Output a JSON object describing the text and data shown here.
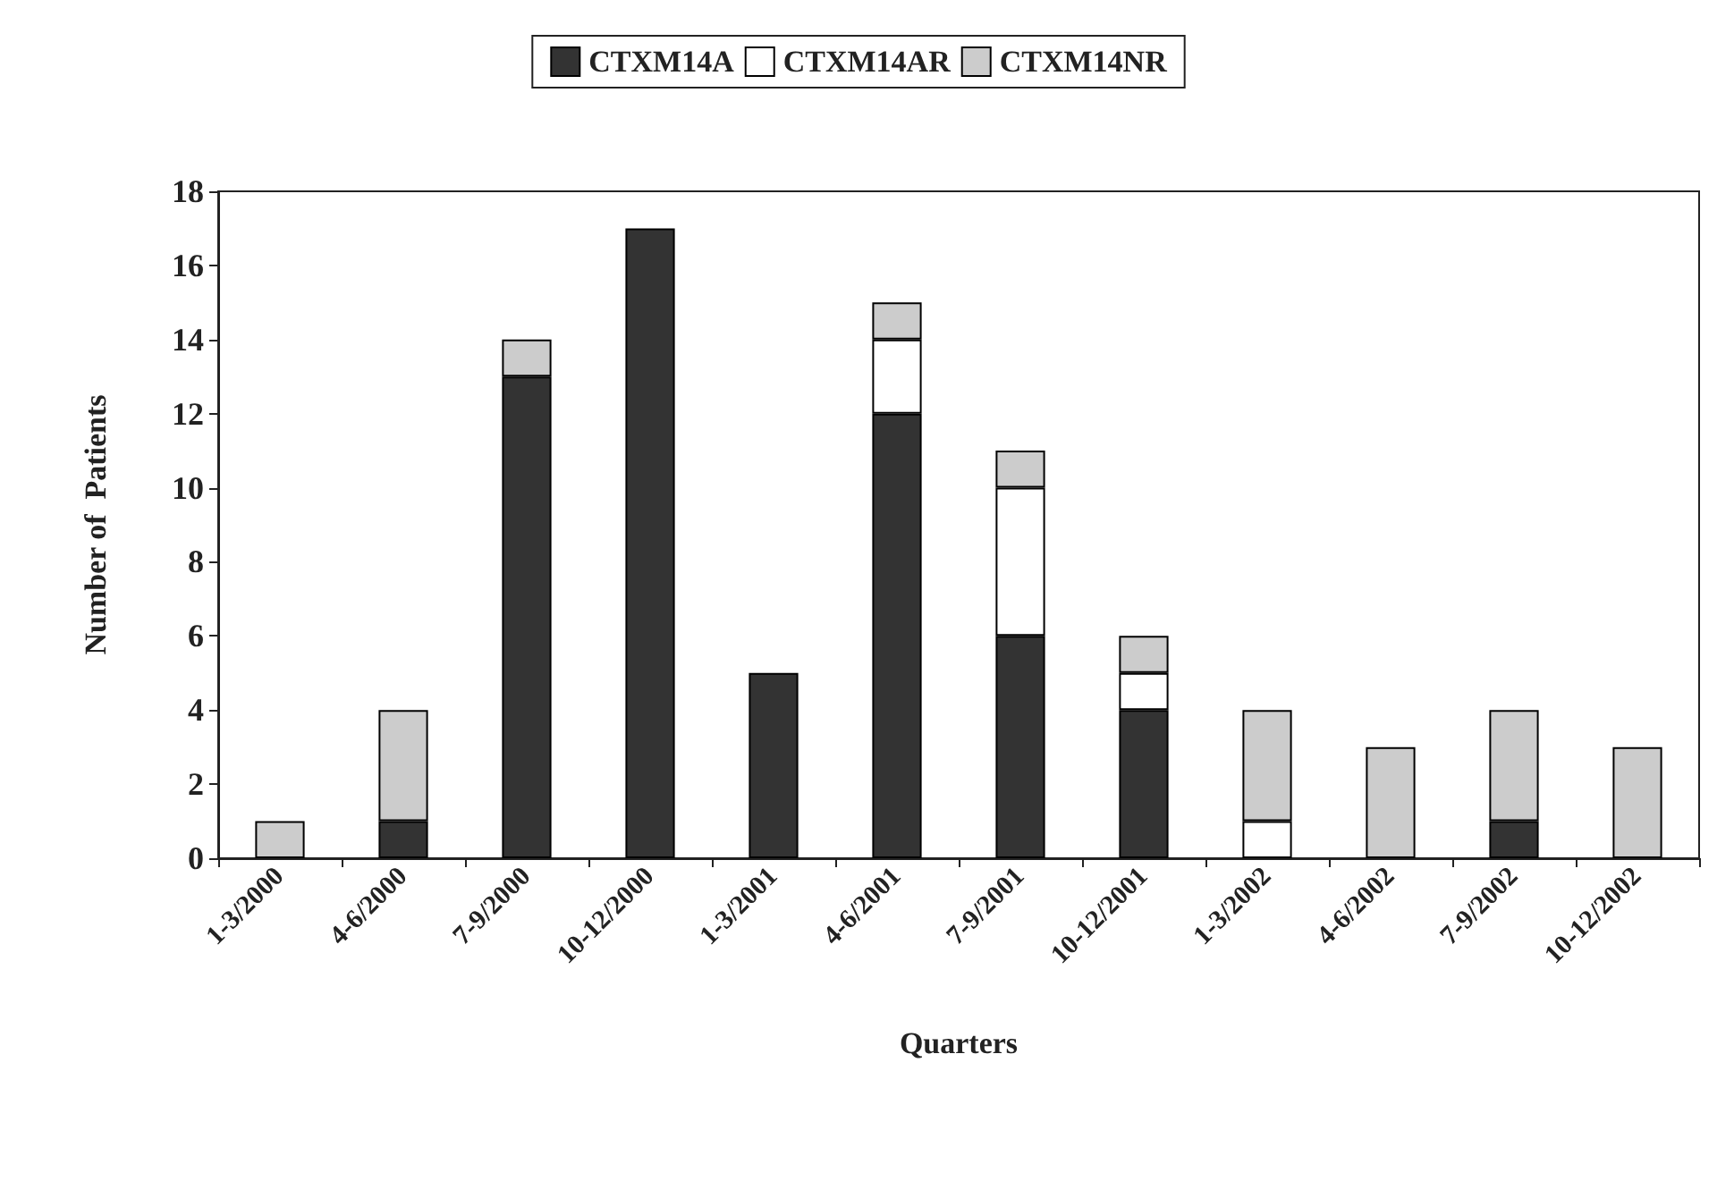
{
  "chart_data": {
    "type": "bar",
    "stacked": true,
    "xlabel": "Quarters",
    "ylabel": "Number of  Patients",
    "categories": [
      "1-3/2000",
      "4-6/2000",
      "7-9/2000",
      "10-12/2000",
      "1-3/2001",
      "4-6/2001",
      "7-9/2001",
      "10-12/2001",
      "1-3/2002",
      "4-6/2002",
      "7-9/2002",
      "10-12/2002"
    ],
    "series": [
      {
        "name": "CTXM14A",
        "color": "#333333",
        "values": [
          0,
          1,
          13,
          17,
          5,
          12,
          6,
          4,
          0,
          0,
          1,
          0
        ]
      },
      {
        "name": "CTXM14AR",
        "color": "#ffffff",
        "values": [
          0,
          0,
          0,
          0,
          0,
          2,
          4,
          1,
          1,
          0,
          0,
          0
        ]
      },
      {
        "name": "CTXM14NR",
        "color": "#cccccc",
        "values": [
          1,
          3,
          1,
          0,
          0,
          1,
          1,
          1,
          3,
          3,
          3,
          3
        ]
      }
    ],
    "ylim": [
      0,
      18
    ],
    "yticks": [
      0,
      2,
      4,
      6,
      8,
      10,
      12,
      14,
      16,
      18
    ],
    "grid": false,
    "legend": "top"
  }
}
